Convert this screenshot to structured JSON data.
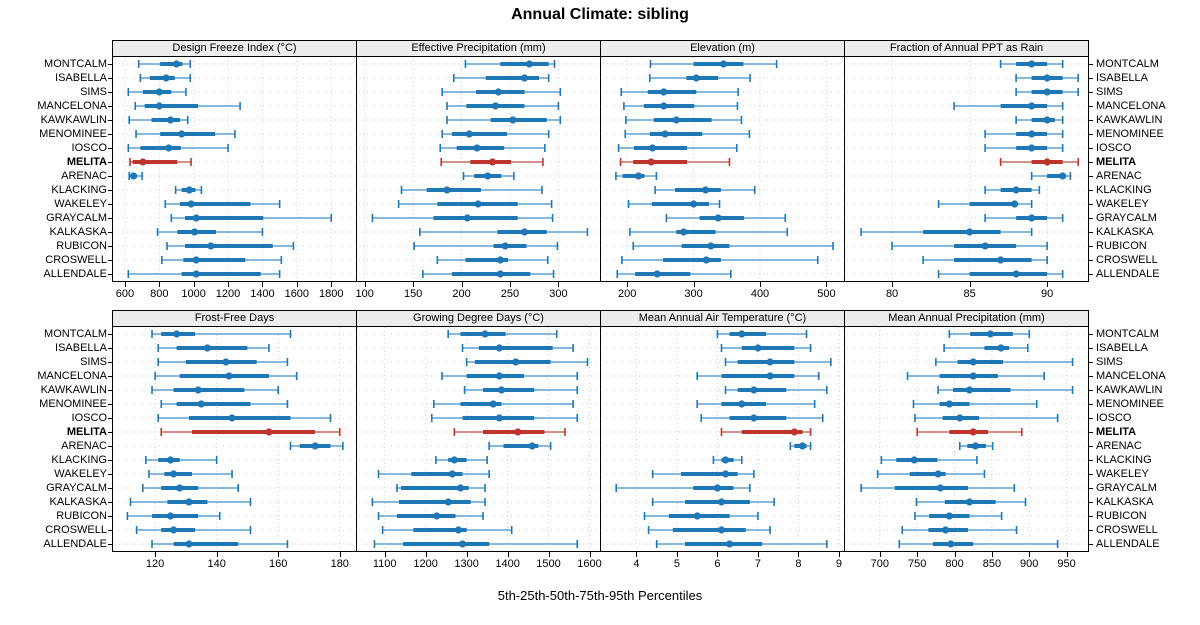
{
  "title": "Annual Climate: sibling",
  "caption": "5th-25th-50th-75th-95th Percentiles",
  "colors": {
    "series": "#1f77b4",
    "series_light": "#88b8da",
    "highlight": "#bd352c",
    "highlight_light": "#d4918a",
    "grid": "#cfcfcf",
    "strip_bg": "#ededed",
    "border": "#000000",
    "background": "#ffffff"
  },
  "chart_data": {
    "type": "scatter",
    "subtype": "percentile-interval-dotplot",
    "title": "Annual Climate: sibling",
    "caption": "5th-25th-50th-75th-95th Percentiles",
    "percentiles": [
      5,
      25,
      50,
      75,
      95
    ],
    "grid": "dotted",
    "legend_position": "none",
    "layout": "2 rows x 4 columns of panels, shared series rows",
    "series_labels": [
      "MONTCALM",
      "ISABELLA",
      "SIMS",
      "MANCELONA",
      "KAWKAWLIN",
      "MENOMINEE",
      "IOSCO",
      "MELITA",
      "ARENAC",
      "KLACKING",
      "WAKELEY",
      "GRAYCALM",
      "KALKASKA",
      "RUBICON",
      "CROSWELL",
      "ALLENDALE"
    ],
    "highlight": "MELITA",
    "highlight_index": 7,
    "panels": [
      {
        "title": "Design Freeze Index (°C)",
        "ticks": [
          600,
          800,
          1000,
          1200,
          1400,
          1600,
          1800
        ],
        "xlim": [
          525,
          1950
        ],
        "values": [
          [
            680,
            805,
            900,
            935,
            980
          ],
          [
            690,
            745,
            840,
            890,
            980
          ],
          [
            620,
            705,
            800,
            870,
            955
          ],
          [
            660,
            715,
            800,
            1025,
            1270
          ],
          [
            625,
            755,
            865,
            920,
            965
          ],
          [
            665,
            805,
            930,
            1125,
            1240
          ],
          [
            620,
            690,
            855,
            925,
            1200
          ],
          [
            630,
            645,
            705,
            905,
            985
          ],
          [
            625,
            635,
            650,
            670,
            700
          ],
          [
            895,
            930,
            975,
            1010,
            1045
          ],
          [
            835,
            920,
            985,
            1330,
            1500
          ],
          [
            870,
            950,
            1015,
            1405,
            1800
          ],
          [
            790,
            905,
            1005,
            1130,
            1400
          ],
          [
            845,
            950,
            1100,
            1460,
            1580
          ],
          [
            815,
            940,
            1015,
            1300,
            1510
          ],
          [
            620,
            930,
            1015,
            1390,
            1500
          ]
        ]
      },
      {
        "title": "Effective Precipitation (mm)",
        "ticks": [
          100,
          150,
          200,
          250,
          300
        ],
        "xlim": [
          91,
          344
        ],
        "values": [
          [
            204,
            240,
            270,
            290,
            296
          ],
          [
            192,
            225,
            265,
            280,
            290
          ],
          [
            180,
            215,
            238,
            265,
            302
          ],
          [
            185,
            205,
            235,
            265,
            300
          ],
          [
            185,
            230,
            253,
            288,
            302
          ],
          [
            180,
            190,
            208,
            247,
            290
          ],
          [
            178,
            195,
            216,
            244,
            286
          ],
          [
            179,
            209,
            232,
            251,
            284
          ],
          [
            202,
            213,
            227,
            241,
            254
          ],
          [
            138,
            164,
            185,
            220,
            283
          ],
          [
            135,
            175,
            217,
            258,
            293
          ],
          [
            108,
            171,
            206,
            258,
            294
          ],
          [
            157,
            237,
            265,
            288,
            330
          ],
          [
            151,
            233,
            245,
            267,
            299
          ],
          [
            175,
            204,
            240,
            248,
            289
          ],
          [
            160,
            190,
            240,
            271,
            295
          ]
        ]
      },
      {
        "title": "Elevation (m)",
        "ticks": [
          200,
          300,
          400,
          500
        ],
        "xlim": [
          159,
          528
        ],
        "values": [
          [
            235,
            300,
            345,
            375,
            425
          ],
          [
            234,
            289,
            304,
            337,
            385
          ],
          [
            191,
            231,
            255,
            304,
            367
          ],
          [
            195,
            225,
            255,
            301,
            366
          ],
          [
            198,
            240,
            274,
            327,
            372
          ],
          [
            197,
            234,
            257,
            313,
            384
          ],
          [
            187,
            210,
            238,
            290,
            365
          ],
          [
            190,
            209,
            236,
            290,
            354
          ],
          [
            183,
            193,
            217,
            226,
            244
          ],
          [
            242,
            272,
            318,
            341,
            392
          ],
          [
            202,
            237,
            300,
            323,
            339
          ],
          [
            259,
            309,
            337,
            376,
            438
          ],
          [
            204,
            274,
            285,
            333,
            441
          ],
          [
            209,
            282,
            326,
            354,
            510
          ],
          [
            192,
            254,
            319,
            341,
            487
          ],
          [
            185,
            212,
            245,
            295,
            356
          ]
        ]
      },
      {
        "title": "Fraction of Annual PPT as Rain",
        "ticks": [
          80,
          85,
          90
        ],
        "xlim": [
          76.9,
          92.7
        ],
        "values": [
          [
            87,
            88,
            89,
            90,
            91
          ],
          [
            88,
            89,
            90,
            91,
            92
          ],
          [
            88,
            89,
            90,
            91,
            92
          ],
          [
            84,
            87,
            89,
            90,
            91
          ],
          [
            88,
            89,
            90,
            90.5,
            91
          ],
          [
            86,
            88,
            89,
            90,
            91
          ],
          [
            86,
            88,
            89,
            90,
            91
          ],
          [
            87,
            89,
            90,
            91,
            92
          ],
          [
            89,
            90,
            91,
            91.2,
            91.5
          ],
          [
            86,
            87,
            88,
            89,
            89.5
          ],
          [
            83,
            85,
            87.9,
            88.1,
            89
          ],
          [
            86,
            88,
            89,
            90,
            91
          ],
          [
            78,
            82,
            85,
            87,
            89
          ],
          [
            80,
            84,
            86,
            88,
            90
          ],
          [
            82,
            84,
            87,
            89,
            90
          ],
          [
            83,
            85,
            88,
            90,
            91
          ]
        ]
      },
      {
        "title": "Frost-Free Days",
        "ticks": [
          120,
          140,
          160,
          180
        ],
        "xlim": [
          106,
          185.6
        ],
        "values": [
          [
            119,
            122,
            127,
            133,
            164
          ],
          [
            121,
            127,
            137,
            150,
            157
          ],
          [
            121,
            130,
            143,
            153,
            163
          ],
          [
            120,
            128,
            144,
            157,
            166
          ],
          [
            119,
            126,
            134,
            149,
            160
          ],
          [
            122,
            127,
            135,
            151,
            163
          ],
          [
            121,
            131,
            145,
            164,
            177
          ],
          [
            122,
            132,
            157,
            172,
            180
          ],
          [
            164,
            167,
            172,
            177,
            181
          ],
          [
            117,
            121,
            125,
            128,
            140
          ],
          [
            118,
            123,
            126,
            132,
            145
          ],
          [
            116,
            122,
            128,
            134,
            147
          ],
          [
            112,
            124,
            131,
            137,
            151
          ],
          [
            111,
            119,
            125,
            134,
            141
          ],
          [
            114,
            122,
            126,
            133,
            151
          ],
          [
            119,
            126,
            131,
            147,
            163
          ]
        ]
      },
      {
        "title": "Growing Degree Days (°C)",
        "ticks": [
          1100,
          1200,
          1300,
          1400,
          1500,
          1600
        ],
        "xlim": [
          1030,
          1628
        ],
        "values": [
          [
            1255,
            1285,
            1345,
            1395,
            1520
          ],
          [
            1290,
            1330,
            1380,
            1510,
            1560
          ],
          [
            1300,
            1320,
            1420,
            1505,
            1595
          ],
          [
            1240,
            1300,
            1380,
            1440,
            1570
          ],
          [
            1295,
            1340,
            1385,
            1465,
            1570
          ],
          [
            1220,
            1285,
            1365,
            1385,
            1560
          ],
          [
            1215,
            1290,
            1380,
            1465,
            1570
          ],
          [
            1270,
            1340,
            1425,
            1490,
            1540
          ],
          [
            1355,
            1390,
            1460,
            1475,
            1505
          ],
          [
            1225,
            1255,
            1270,
            1300,
            1350
          ],
          [
            1085,
            1165,
            1265,
            1290,
            1355
          ],
          [
            1130,
            1140,
            1285,
            1305,
            1345
          ],
          [
            1070,
            1135,
            1255,
            1310,
            1345
          ],
          [
            1085,
            1130,
            1227,
            1273,
            1340
          ],
          [
            1095,
            1170,
            1280,
            1300,
            1410
          ],
          [
            1075,
            1145,
            1290,
            1355,
            1570
          ]
        ]
      },
      {
        "title": "Mean Annual Air Temperature (°C)",
        "ticks": [
          4,
          5,
          6,
          7,
          8,
          9
        ],
        "xlim": [
          3.1,
          9.15
        ],
        "values": [
          [
            6.0,
            6.3,
            6.6,
            7.2,
            8.2
          ],
          [
            6.1,
            6.6,
            7.0,
            7.9,
            8.3
          ],
          [
            6.2,
            6.5,
            7.3,
            7.9,
            8.8
          ],
          [
            5.5,
            6.1,
            7.3,
            7.9,
            8.5
          ],
          [
            6.2,
            6.5,
            6.9,
            7.7,
            8.7
          ],
          [
            5.5,
            6.1,
            6.6,
            7.2,
            8.4
          ],
          [
            5.6,
            6.3,
            6.9,
            7.7,
            8.6
          ],
          [
            6.1,
            6.6,
            7.9,
            8.1,
            8.3
          ],
          [
            7.8,
            7.9,
            8.1,
            8.2,
            8.3
          ],
          [
            5.9,
            6.1,
            6.2,
            6.4,
            6.6
          ],
          [
            4.4,
            5.1,
            6.2,
            6.5,
            6.9
          ],
          [
            3.5,
            5.4,
            6.0,
            6.4,
            6.8
          ],
          [
            4.4,
            5.2,
            6.1,
            6.8,
            7.4
          ],
          [
            4.2,
            4.8,
            5.5,
            6.3,
            7.0
          ],
          [
            4.3,
            4.9,
            6.1,
            6.7,
            7.3
          ],
          [
            4.5,
            5.2,
            6.3,
            7.1,
            8.7
          ]
        ]
      },
      {
        "title": "Mean Annual Precipitation (mm)",
        "ticks": [
          700,
          750,
          800,
          850,
          900,
          950
        ],
        "xlim": [
          652,
          980
        ],
        "values": [
          [
            793,
            821,
            848,
            878,
            900
          ],
          [
            786,
            840,
            862,
            873,
            898
          ],
          [
            775,
            804,
            825,
            865,
            958
          ],
          [
            737,
            780,
            825,
            858,
            920
          ],
          [
            778,
            798,
            820,
            875,
            958
          ],
          [
            745,
            780,
            793,
            820,
            910
          ],
          [
            747,
            784,
            807,
            833,
            938
          ],
          [
            750,
            793,
            825,
            845,
            890
          ],
          [
            807,
            817,
            828,
            842,
            851
          ],
          [
            702,
            722,
            746,
            777,
            830
          ],
          [
            697,
            740,
            778,
            788,
            840
          ],
          [
            675,
            720,
            781,
            818,
            880
          ],
          [
            749,
            787,
            820,
            855,
            895
          ],
          [
            747,
            766,
            793,
            820,
            863
          ],
          [
            730,
            765,
            788,
            818,
            883
          ],
          [
            726,
            771,
            795,
            825,
            938
          ]
        ]
      }
    ]
  }
}
